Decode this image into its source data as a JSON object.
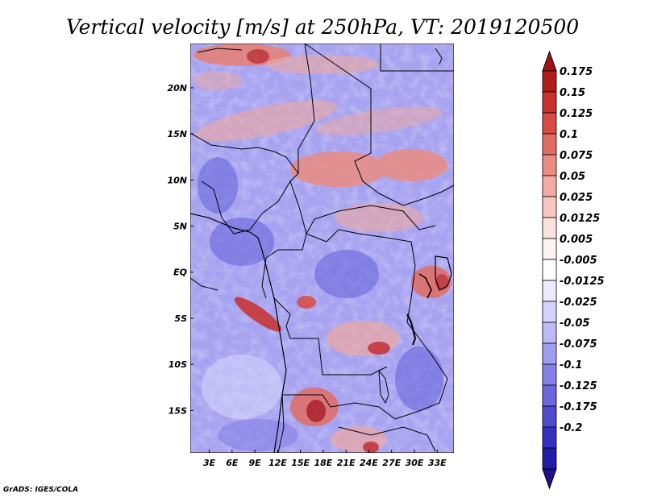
{
  "chart_data": {
    "type": "heatmap",
    "title": "Vertical velocity [m/s] at 250hPa, VT: 2019120500",
    "variable": "Vertical velocity",
    "units": "m/s",
    "level": "250hPa",
    "valid_time": "2019120500",
    "x_ticks": [
      "3E",
      "6E",
      "9E",
      "12E",
      "15E",
      "18E",
      "21E",
      "24E",
      "27E",
      "30E",
      "33E"
    ],
    "y_ticks": [
      "20N",
      "15N",
      "10N",
      "5N",
      "EQ",
      "5S",
      "10S",
      "15S"
    ],
    "colorbar_labels": [
      "0.175",
      "0.15",
      "0.125",
      "0.1",
      "0.075",
      "0.05",
      "0.025",
      "0.0125",
      "0.005",
      "-0.005",
      "-0.0125",
      "-0.025",
      "-0.05",
      "-0.075",
      "-0.1",
      "-0.125",
      "-0.175",
      "-0.2"
    ],
    "colorbar_colors": [
      "#b31a1a",
      "#c8312c",
      "#d84a42",
      "#e26c62",
      "#eb8c82",
      "#f3aaa0",
      "#f8c8c0",
      "#fce2dc",
      "#fff4f2",
      "#ffffff",
      "#eceaff",
      "#d6d3fc",
      "#bdb9f6",
      "#a09cef",
      "#8581e6",
      "#6a66dc",
      "#4e4bcf",
      "#3530bf",
      "#221ca8"
    ],
    "colorbar_top_cap": "#a01414",
    "colorbar_bottom_cap": "#1e1090"
  },
  "credit": "GrADS: IGES/COLA"
}
